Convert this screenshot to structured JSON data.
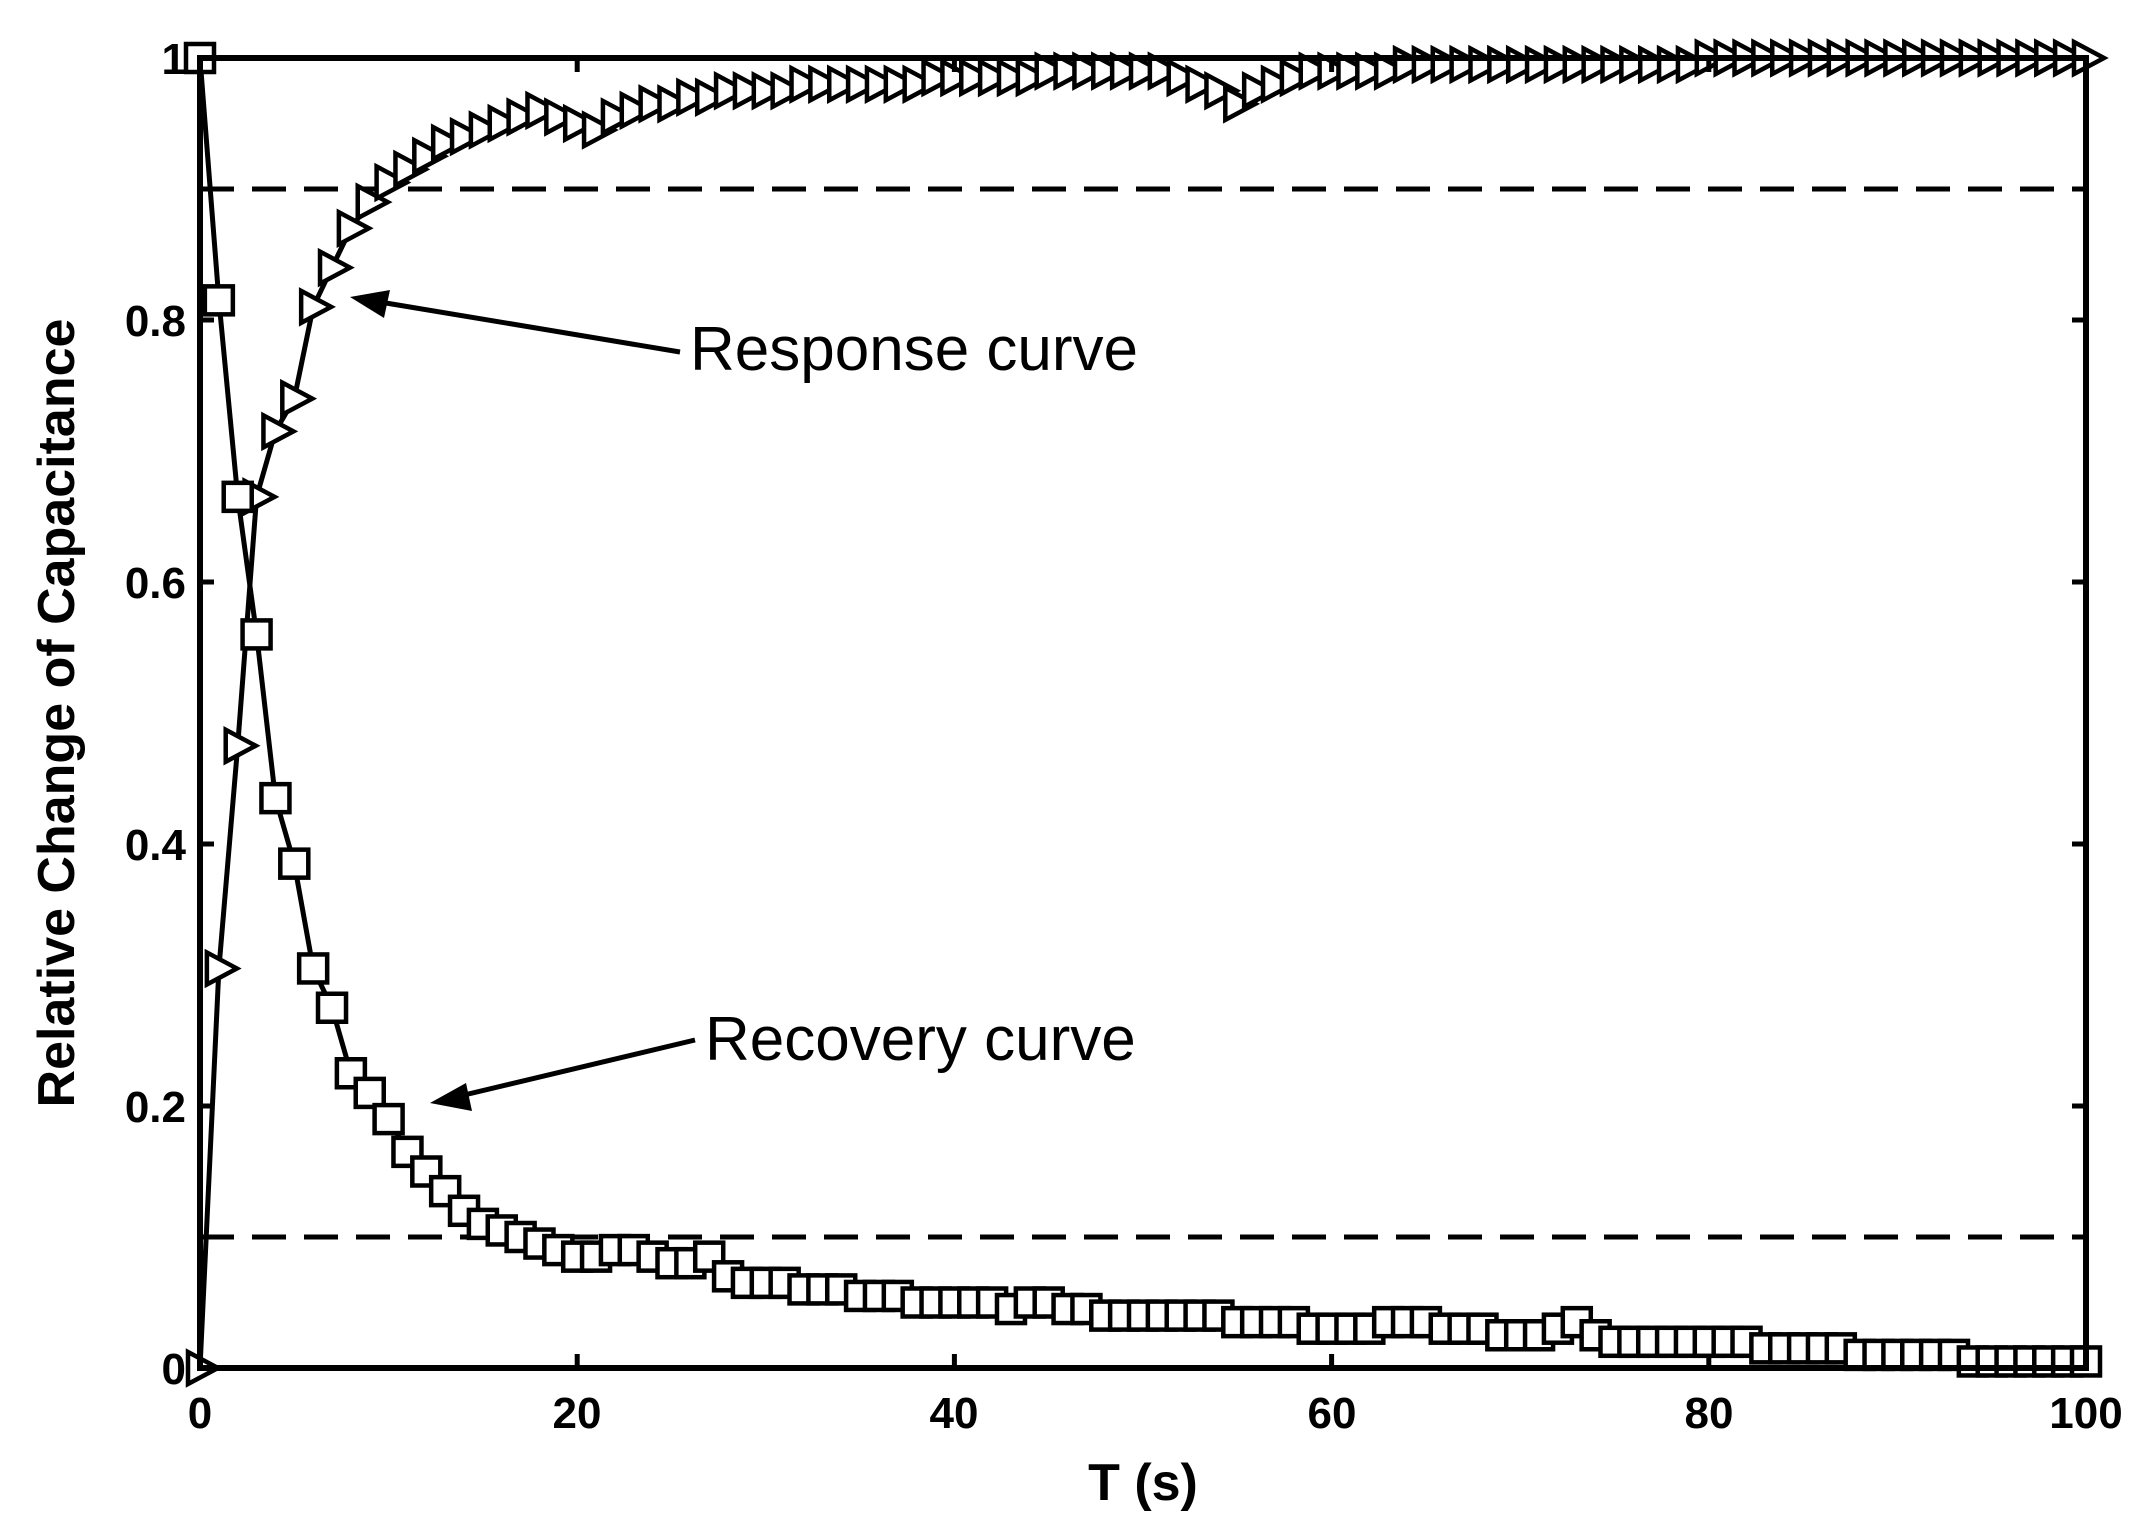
{
  "chart_data": {
    "type": "line",
    "title": "",
    "xlabel": "T (s)",
    "ylabel": "Relative Change of Capacitance",
    "xlim": [
      0,
      100
    ],
    "ylim": [
      0,
      1
    ],
    "x_ticks": [
      "0",
      "20",
      "40",
      "60",
      "80",
      "100"
    ],
    "y_ticks": [
      "0",
      "0.2",
      "0.4",
      "0.6",
      "0.8",
      "1"
    ],
    "grid": false,
    "reference_lines": [
      {
        "name": "upper-threshold",
        "y": 0.9,
        "style": "dashed"
      },
      {
        "name": "lower-threshold",
        "y": 0.1,
        "style": "dashed"
      }
    ],
    "series": [
      {
        "name": "Response curve",
        "marker": "triangle-right",
        "x": [
          0,
          1,
          2,
          3,
          4,
          5,
          6,
          7,
          8,
          9,
          10,
          11,
          12,
          13,
          14,
          15,
          16,
          17,
          18,
          19,
          20,
          21,
          22,
          23,
          24,
          25,
          26,
          27,
          28,
          29,
          30,
          31,
          32,
          33,
          34,
          35,
          36,
          37,
          38,
          39,
          40,
          41,
          42,
          43,
          44,
          45,
          46,
          47,
          48,
          49,
          50,
          51,
          52,
          53,
          54,
          55,
          56,
          57,
          58,
          59,
          60,
          61,
          62,
          63,
          64,
          65,
          66,
          67,
          68,
          69,
          70,
          71,
          72,
          73,
          74,
          75,
          76,
          77,
          78,
          79,
          80,
          81,
          82,
          83,
          84,
          85,
          86,
          87,
          88,
          89,
          90,
          91,
          92,
          93,
          94,
          95,
          96,
          97,
          98,
          99,
          100
        ],
        "values": [
          0.0,
          0.305,
          0.475,
          0.665,
          0.715,
          0.74,
          0.81,
          0.84,
          0.87,
          0.89,
          0.905,
          0.915,
          0.925,
          0.935,
          0.94,
          0.945,
          0.95,
          0.955,
          0.96,
          0.955,
          0.95,
          0.945,
          0.955,
          0.96,
          0.965,
          0.965,
          0.97,
          0.97,
          0.975,
          0.975,
          0.975,
          0.975,
          0.98,
          0.98,
          0.98,
          0.98,
          0.98,
          0.98,
          0.98,
          0.985,
          0.985,
          0.985,
          0.985,
          0.985,
          0.985,
          0.99,
          0.99,
          0.99,
          0.99,
          0.99,
          0.99,
          0.99,
          0.985,
          0.98,
          0.975,
          0.965,
          0.975,
          0.98,
          0.985,
          0.99,
          0.99,
          0.99,
          0.99,
          0.99,
          0.995,
          0.995,
          0.995,
          0.995,
          0.995,
          0.995,
          0.995,
          0.995,
          0.995,
          0.995,
          0.995,
          0.995,
          0.995,
          0.995,
          0.995,
          0.995,
          1.0,
          1.0,
          1.0,
          1.0,
          1.0,
          1.0,
          1.0,
          1.0,
          1.0,
          1.0,
          1.0,
          1.0,
          1.0,
          1.0,
          1.0,
          1.0,
          1.0,
          1.0,
          1.0,
          1.0,
          1.0
        ]
      },
      {
        "name": "Recovery curve",
        "marker": "square",
        "x": [
          0,
          1,
          2,
          3,
          4,
          5,
          6,
          7,
          8,
          9,
          10,
          11,
          12,
          13,
          14,
          15,
          16,
          17,
          18,
          19,
          20,
          21,
          22,
          23,
          24,
          25,
          26,
          27,
          28,
          29,
          30,
          31,
          32,
          33,
          34,
          35,
          36,
          37,
          38,
          39,
          40,
          41,
          42,
          43,
          44,
          45,
          46,
          47,
          48,
          49,
          50,
          51,
          52,
          53,
          54,
          55,
          56,
          57,
          58,
          59,
          60,
          61,
          62,
          63,
          64,
          65,
          66,
          67,
          68,
          69,
          70,
          71,
          72,
          73,
          74,
          75,
          76,
          77,
          78,
          79,
          80,
          81,
          82,
          83,
          84,
          85,
          86,
          87,
          88,
          89,
          90,
          91,
          92,
          93,
          94,
          95,
          96,
          97,
          98,
          99,
          100
        ],
        "values": [
          1.0,
          0.815,
          0.665,
          0.56,
          0.435,
          0.385,
          0.305,
          0.275,
          0.225,
          0.21,
          0.19,
          0.165,
          0.15,
          0.135,
          0.12,
          0.11,
          0.105,
          0.1,
          0.095,
          0.09,
          0.085,
          0.085,
          0.09,
          0.09,
          0.085,
          0.08,
          0.08,
          0.085,
          0.07,
          0.065,
          0.065,
          0.065,
          0.06,
          0.06,
          0.06,
          0.055,
          0.055,
          0.055,
          0.05,
          0.05,
          0.05,
          0.05,
          0.05,
          0.045,
          0.05,
          0.05,
          0.045,
          0.045,
          0.04,
          0.04,
          0.04,
          0.04,
          0.04,
          0.04,
          0.04,
          0.035,
          0.035,
          0.035,
          0.035,
          0.03,
          0.03,
          0.03,
          0.03,
          0.035,
          0.035,
          0.035,
          0.03,
          0.03,
          0.03,
          0.025,
          0.025,
          0.025,
          0.03,
          0.035,
          0.025,
          0.02,
          0.02,
          0.02,
          0.02,
          0.02,
          0.02,
          0.02,
          0.02,
          0.015,
          0.015,
          0.015,
          0.015,
          0.015,
          0.01,
          0.01,
          0.01,
          0.01,
          0.01,
          0.01,
          0.005,
          0.005,
          0.005,
          0.005,
          0.005,
          0.005,
          0.005
        ]
      }
    ],
    "annotations": [
      {
        "text": "Response curve",
        "points_to_series": "Response curve",
        "target": [
          8,
          0.82
        ]
      },
      {
        "text": "Recovery curve",
        "points_to_series": "Recovery curve",
        "target": [
          12,
          0.2
        ]
      }
    ]
  }
}
